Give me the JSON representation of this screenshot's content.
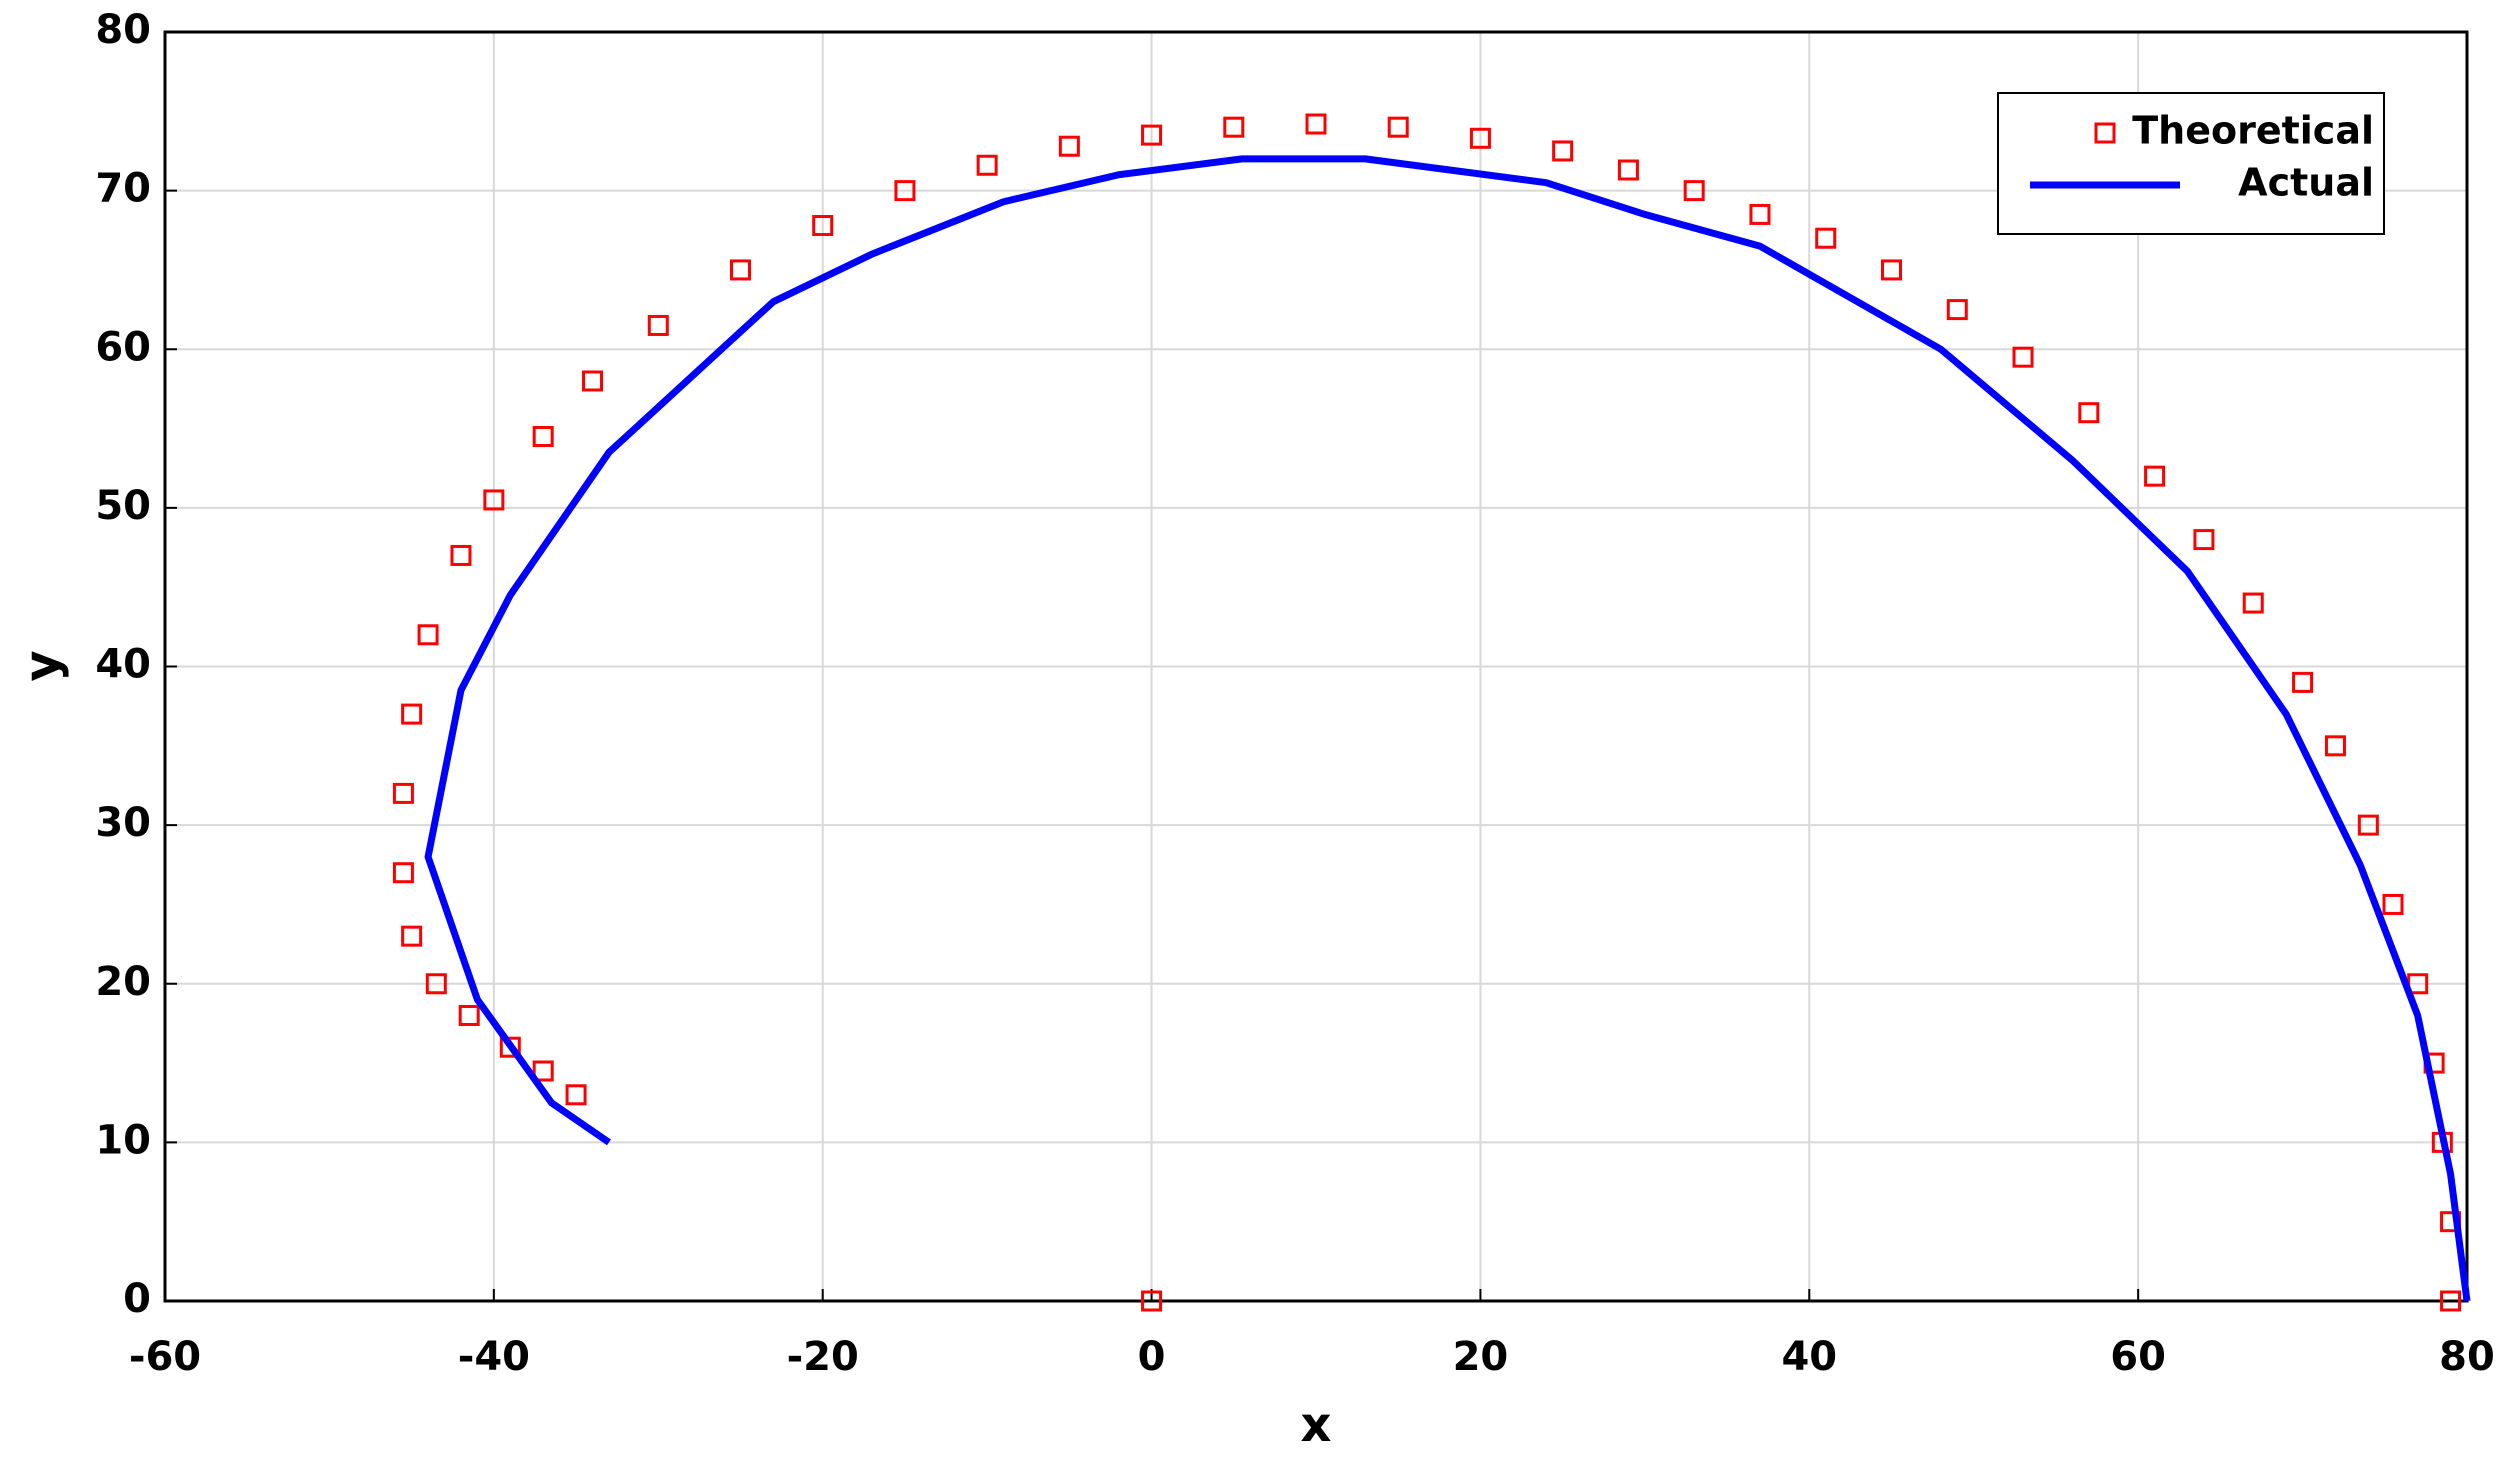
{
  "chart_data": {
    "type": "scatter-line",
    "xlabel": "x",
    "ylabel": "y",
    "xlim": [
      -60,
      80
    ],
    "xticks": [
      -60,
      -40,
      -20,
      0,
      20,
      40,
      60,
      80
    ],
    "ylim": [
      0,
      80
    ],
    "yticks": [
      0,
      10,
      20,
      30,
      40,
      50,
      60,
      70,
      80
    ],
    "grid": true,
    "legend": "upper right",
    "series": [
      {
        "name": "Theoretical",
        "color": "#ff0000",
        "marker": "square",
        "x": [
          0,
          79,
          79,
          78.5,
          78,
          77,
          75.5,
          74,
          72,
          70,
          67,
          64,
          61,
          57,
          53,
          49,
          45,
          41,
          37,
          33,
          29,
          25,
          20,
          15,
          10,
          5,
          0,
          -5,
          -10,
          -15,
          -20,
          -25,
          -30,
          -34,
          -37,
          -40,
          -42,
          -44,
          -45,
          -45.5,
          -45.5,
          -45,
          -43.5,
          -41.5,
          -39,
          -37,
          -35
        ],
        "values": [
          0,
          0,
          5,
          10,
          15,
          20,
          25,
          30,
          35,
          39,
          44,
          48,
          52,
          56,
          59.5,
          62.5,
          65,
          67,
          68.5,
          70,
          71.3,
          72.5,
          73.3,
          74,
          74.2,
          74,
          73.5,
          72.8,
          71.6,
          70,
          67.8,
          65,
          61.5,
          58,
          54.5,
          50.5,
          47,
          42,
          37,
          32,
          27,
          23,
          20,
          18,
          16,
          14.5,
          13
        ]
      },
      {
        "name": "Actual",
        "color": "#0000ff",
        "marker": "line",
        "x": [
          -33,
          -36.5,
          -41,
          -44,
          -42,
          -39,
          -33,
          -23,
          -17,
          -9,
          -2,
          5.5,
          13,
          24,
          30,
          37,
          48,
          56,
          63,
          69,
          73.5,
          77,
          79,
          80
        ],
        "values": [
          10,
          12.5,
          19,
          28,
          38.5,
          44.5,
          53.5,
          63,
          66,
          69.3,
          71,
          72,
          72,
          70.5,
          68.5,
          66.5,
          60,
          53,
          46,
          37,
          27.5,
          18,
          8,
          0
        ]
      }
    ]
  }
}
